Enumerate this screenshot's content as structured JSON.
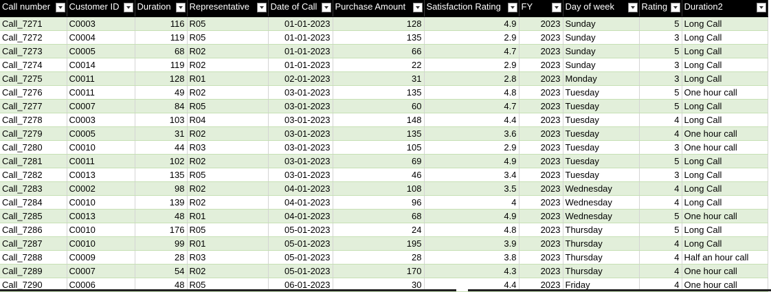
{
  "headers": [
    {
      "label": "Call number"
    },
    {
      "label": "Customer ID"
    },
    {
      "label": "Duration"
    },
    {
      "label": "Representative"
    },
    {
      "label": "Date of Call"
    },
    {
      "label": "Purchase Amount"
    },
    {
      "label": "Satisfaction Rating"
    },
    {
      "label": "FY"
    },
    {
      "label": "Day of week"
    },
    {
      "label": "Rating_"
    },
    {
      "label": "Duration2"
    }
  ],
  "rows": [
    [
      "Call_7271",
      "C0003",
      "116",
      "R05",
      "01-01-2023",
      "128",
      "4.9",
      "2023",
      "Sunday",
      "5",
      "Long Call"
    ],
    [
      "Call_7272",
      "C0004",
      "119",
      "R05",
      "01-01-2023",
      "135",
      "2.9",
      "2023",
      "Sunday",
      "3",
      "Long Call"
    ],
    [
      "Call_7273",
      "C0005",
      "68",
      "R02",
      "01-01-2023",
      "66",
      "4.7",
      "2023",
      "Sunday",
      "5",
      "Long Call"
    ],
    [
      "Call_7274",
      "C0014",
      "119",
      "R02",
      "01-01-2023",
      "22",
      "2.9",
      "2023",
      "Sunday",
      "3",
      "Long Call"
    ],
    [
      "Call_7275",
      "C0011",
      "128",
      "R01",
      "02-01-2023",
      "31",
      "2.8",
      "2023",
      "Monday",
      "3",
      "Long Call"
    ],
    [
      "Call_7276",
      "C0011",
      "49",
      "R02",
      "03-01-2023",
      "135",
      "4.8",
      "2023",
      "Tuesday",
      "5",
      "One hour call"
    ],
    [
      "Call_7277",
      "C0007",
      "84",
      "R05",
      "03-01-2023",
      "60",
      "4.7",
      "2023",
      "Tuesday",
      "5",
      "Long Call"
    ],
    [
      "Call_7278",
      "C0003",
      "103",
      "R04",
      "03-01-2023",
      "148",
      "4.4",
      "2023",
      "Tuesday",
      "4",
      "Long Call"
    ],
    [
      "Call_7279",
      "C0005",
      "31",
      "R02",
      "03-01-2023",
      "135",
      "3.6",
      "2023",
      "Tuesday",
      "4",
      "One hour call"
    ],
    [
      "Call_7280",
      "C0010",
      "44",
      "R03",
      "03-01-2023",
      "105",
      "2.9",
      "2023",
      "Tuesday",
      "3",
      "One hour call"
    ],
    [
      "Call_7281",
      "C0011",
      "102",
      "R02",
      "03-01-2023",
      "69",
      "4.9",
      "2023",
      "Tuesday",
      "5",
      "Long Call"
    ],
    [
      "Call_7282",
      "C0013",
      "135",
      "R05",
      "03-01-2023",
      "46",
      "3.4",
      "2023",
      "Tuesday",
      "3",
      "Long Call"
    ],
    [
      "Call_7283",
      "C0002",
      "98",
      "R02",
      "04-01-2023",
      "108",
      "3.5",
      "2023",
      "Wednesday",
      "4",
      "Long Call"
    ],
    [
      "Call_7284",
      "C0010",
      "139",
      "R02",
      "04-01-2023",
      "96",
      "4",
      "2023",
      "Wednesday",
      "4",
      "Long Call"
    ],
    [
      "Call_7285",
      "C0013",
      "48",
      "R01",
      "04-01-2023",
      "68",
      "4.9",
      "2023",
      "Wednesday",
      "5",
      "One hour call"
    ],
    [
      "Call_7286",
      "C0010",
      "176",
      "R05",
      "05-01-2023",
      "24",
      "4.8",
      "2023",
      "Thursday",
      "5",
      "Long Call"
    ],
    [
      "Call_7287",
      "C0010",
      "99",
      "R01",
      "05-01-2023",
      "195",
      "3.9",
      "2023",
      "Thursday",
      "4",
      "Long Call"
    ],
    [
      "Call_7288",
      "C0009",
      "28",
      "R03",
      "05-01-2023",
      "28",
      "3.8",
      "2023",
      "Thursday",
      "4",
      "Half an hour call"
    ],
    [
      "Call_7289",
      "C0007",
      "54",
      "R02",
      "05-01-2023",
      "170",
      "4.3",
      "2023",
      "Thursday",
      "4",
      "One hour call"
    ],
    [
      "Call_7290",
      "C0006",
      "48",
      "R05",
      "06-01-2023",
      "30",
      "4.4",
      "2023",
      "Friday",
      "4",
      "One hour call"
    ]
  ],
  "colors": {
    "header_bg": "#000000",
    "band_bg": "#e2efda",
    "plain_bg": "#ffffff"
  }
}
